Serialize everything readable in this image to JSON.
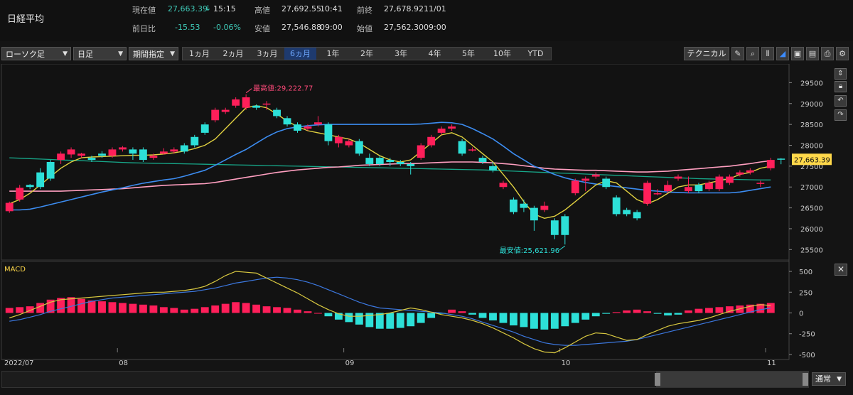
{
  "instrument": "日経平均",
  "quote": {
    "current_label": "現在値",
    "current_value": "27,663.39",
    "current_arrow": "↓",
    "current_time": "15:15",
    "high_label": "高値",
    "high_value": "27,692.55",
    "high_time": "10:41",
    "prev_label": "前終",
    "prev_value": "27,678.92",
    "prev_date": "11/01",
    "change_label": "前日比",
    "change_value": "-15.53",
    "change_pct": "-0.06%",
    "low_label": "安値",
    "low_value": "27,546.88",
    "low_time": "09:00",
    "open_label": "始値",
    "open_value": "27,562.30",
    "open_time": "09:00"
  },
  "toolbar": {
    "chart_type": "ローソク足",
    "interval": "日足",
    "period_select": "期間指定",
    "periods": [
      "1ヵ月",
      "2ヵ月",
      "3ヵ月",
      "6ヵ月",
      "1年",
      "2年",
      "3年",
      "4年",
      "5年",
      "10年",
      "YTD"
    ],
    "active_period": "6ヵ月",
    "technical": "テクニカル",
    "icons": [
      "pencil-icon",
      "zoom-icon",
      "bar-chart-icon",
      "area-chart-icon",
      "save-icon",
      "document-icon",
      "print-icon",
      "settings-icon"
    ]
  },
  "side_icons": [
    "scroll-icon",
    "lock-icon",
    "undo-icon",
    "redo-icon"
  ],
  "colors": {
    "up": "#ff1f5a",
    "down": "#2de0d8",
    "ma_short": "#e0d040",
    "ma_mid": "#3c8cf0",
    "ma_long": "#ff9fc0",
    "ma_vlong": "#17a88a",
    "macd_line": "#d8c840",
    "signal_line": "#3c78e0"
  },
  "chart_data": {
    "type": "candlestick",
    "x_labels": [
      "2022/07",
      "08",
      "09",
      "10",
      "11"
    ],
    "x_label_index": [
      0,
      11,
      33,
      54,
      74
    ],
    "y_ticks": [
      25500,
      26000,
      26500,
      27000,
      27500,
      28000,
      28500,
      29000,
      29500
    ],
    "ylim": [
      25250,
      29950
    ],
    "last_price_label": "27,663.39",
    "annotations": [
      {
        "text": "最高値:29,222.77",
        "index": 23,
        "value": 29222.77
      },
      {
        "text": "最安値:25,621.96",
        "index": 54,
        "value": 25621.96
      }
    ],
    "candles": [
      [
        26420,
        26620,
        26380,
        26650
      ],
      [
        26700,
        26980,
        26650,
        27050
      ],
      [
        27050,
        27000,
        26950,
        27070
      ],
      [
        27350,
        27000,
        26950,
        27450
      ],
      [
        27600,
        27200,
        27150,
        27650
      ],
      [
        27650,
        27800,
        27550,
        27850
      ],
      [
        27780,
        27900,
        27700,
        27950
      ],
      [
        27750,
        27800,
        27700,
        27820
      ],
      [
        27700,
        27650,
        27600,
        27750
      ],
      [
        27800,
        27750,
        27700,
        27860
      ],
      [
        27750,
        27900,
        27700,
        27950
      ],
      [
        27900,
        27950,
        27850,
        27980
      ],
      [
        27900,
        27800,
        27650,
        27950
      ],
      [
        27900,
        27650,
        27600,
        27950
      ],
      [
        27700,
        27750,
        27650,
        27800
      ],
      [
        27800,
        27850,
        27780,
        27930
      ],
      [
        27850,
        27900,
        27800,
        27950
      ],
      [
        28000,
        27850,
        27800,
        28050
      ],
      [
        28200,
        28000,
        27950,
        28250
      ],
      [
        28500,
        28300,
        28250,
        28550
      ],
      [
        28600,
        28850,
        28550,
        28900
      ],
      [
        28800,
        28850,
        28750,
        28900
      ],
      [
        28950,
        29100,
        28900,
        29150
      ],
      [
        28900,
        29150,
        28850,
        29222
      ],
      [
        28950,
        28900,
        28850,
        28980
      ],
      [
        29000,
        29000,
        28850,
        29060
      ],
      [
        28850,
        28700,
        28650,
        28900
      ],
      [
        28650,
        28500,
        28450,
        28700
      ],
      [
        28500,
        28350,
        28300,
        28550
      ],
      [
        28400,
        28450,
        28350,
        28500
      ],
      [
        28500,
        28550,
        28450,
        28700
      ],
      [
        28500,
        28100,
        28000,
        28550
      ],
      [
        28050,
        28200,
        27950,
        28250
      ],
      [
        28000,
        28100,
        27950,
        28150
      ],
      [
        28100,
        27800,
        27750,
        28150
      ],
      [
        27700,
        27550,
        27500,
        27800
      ],
      [
        27700,
        27550,
        27500,
        27750
      ],
      [
        27650,
        27600,
        27500,
        27700
      ],
      [
        27600,
        27550,
        27500,
        27650
      ],
      [
        27550,
        27500,
        27300,
        27600
      ],
      [
        27700,
        28000,
        27650,
        28050
      ],
      [
        28000,
        28200,
        27950,
        28250
      ],
      [
        28300,
        28400,
        28250,
        28450
      ],
      [
        28400,
        28450,
        28350,
        28500
      ],
      [
        28100,
        27800,
        27750,
        28150
      ],
      [
        27900,
        27900,
        27850,
        27950
      ],
      [
        27700,
        27600,
        27550,
        27750
      ],
      [
        27500,
        27400,
        27350,
        27600
      ],
      [
        27000,
        27100,
        26950,
        27150
      ],
      [
        26700,
        26400,
        26350,
        26750
      ],
      [
        26600,
        26500,
        26400,
        26700
      ],
      [
        26500,
        26200,
        25950,
        26550
      ],
      [
        26450,
        26550,
        26400,
        26650
      ],
      [
        26200,
        25850,
        25750,
        26250
      ],
      [
        26300,
        25850,
        25622,
        26350
      ],
      [
        26850,
        27150,
        26800,
        27200
      ],
      [
        27150,
        27200,
        26900,
        27250
      ],
      [
        27250,
        27300,
        27200,
        27350
      ],
      [
        27200,
        27000,
        26950,
        27250
      ],
      [
        26750,
        26350,
        26300,
        26800
      ],
      [
        26450,
        26350,
        26300,
        26500
      ],
      [
        26400,
        26250,
        26200,
        26450
      ],
      [
        26600,
        27100,
        26550,
        27150
      ],
      [
        26850,
        26850,
        26800,
        26950
      ],
      [
        26900,
        27050,
        26850,
        27150
      ],
      [
        27200,
        27250,
        27150,
        27300
      ],
      [
        26900,
        27000,
        26850,
        27250
      ],
      [
        27050,
        26900,
        26850,
        27100
      ],
      [
        26950,
        27100,
        26900,
        27150
      ],
      [
        26950,
        27250,
        26900,
        27300
      ],
      [
        27100,
        27250,
        27050,
        27300
      ],
      [
        27300,
        27350,
        27250,
        27400
      ],
      [
        27350,
        27400,
        27300,
        27450
      ],
      [
        27100,
        27100,
        27000,
        27150
      ],
      [
        27450,
        27650,
        27400,
        27700
      ],
      [
        27680,
        27660,
        27546,
        27692
      ]
    ],
    "ma_short": [
      26600,
      26700,
      26850,
      27050,
      27250,
      27450,
      27600,
      27700,
      27720,
      27730,
      27740,
      27750,
      27760,
      27760,
      27770,
      27790,
      27820,
      27860,
      27920,
      28000,
      28150,
      28400,
      28650,
      28900,
      28950,
      28900,
      28750,
      28580,
      28450,
      28350,
      28300,
      28250,
      28200,
      28150,
      28050,
      27900,
      27750,
      27650,
      27600,
      27650,
      27850,
      28050,
      28250,
      28300,
      28200,
      28000,
      27800,
      27600,
      27300,
      27000,
      26650,
      26350,
      26250,
      26300,
      26450,
      26650,
      26850,
      27050,
      27150,
      27100,
      26900,
      26700,
      26600,
      26700,
      26850,
      27000,
      27050,
      27050,
      27100,
      27150,
      27200,
      27300,
      27350,
      27450,
      27500
    ],
    "ma_mid": [
      26450,
      26450,
      26470,
      26520,
      26580,
      26640,
      26700,
      26760,
      26820,
      26880,
      26930,
      26980,
      27040,
      27090,
      27130,
      27170,
      27200,
      27260,
      27330,
      27400,
      27520,
      27650,
      27780,
      27900,
      28050,
      28200,
      28320,
      28400,
      28440,
      28470,
      28490,
      28500,
      28500,
      28500,
      28500,
      28500,
      28500,
      28500,
      28500,
      28500,
      28510,
      28530,
      28550,
      28540,
      28500,
      28400,
      28280,
      28150,
      27980,
      27800,
      27650,
      27500,
      27400,
      27300,
      27220,
      27160,
      27110,
      27070,
      27040,
      27010,
      26980,
      26950,
      26920,
      26900,
      26880,
      26870,
      26860,
      26860,
      26860,
      26860,
      26860,
      26880,
      26920,
      26960,
      27000
    ],
    "ma_long": [
      26900,
      26900,
      26900,
      26900,
      26900,
      26900,
      26910,
      26920,
      26930,
      26940,
      26950,
      26960,
      26980,
      27000,
      27020,
      27040,
      27050,
      27060,
      27070,
      27080,
      27110,
      27150,
      27190,
      27230,
      27270,
      27310,
      27350,
      27380,
      27410,
      27430,
      27450,
      27470,
      27480,
      27500,
      27520,
      27530,
      27540,
      27550,
      27560,
      27560,
      27570,
      27580,
      27590,
      27600,
      27600,
      27600,
      27590,
      27580,
      27560,
      27540,
      27510,
      27480,
      27450,
      27430,
      27420,
      27410,
      27400,
      27400,
      27390,
      27380,
      27370,
      27360,
      27360,
      27370,
      27380,
      27400,
      27420,
      27440,
      27460,
      27480,
      27500,
      27530,
      27560,
      27600,
      27630
    ],
    "ma_vlong": [
      27700,
      27690,
      27680,
      27670,
      27660,
      27650,
      27640,
      27630,
      27620,
      27610,
      27600,
      27590,
      27580,
      27575,
      27570,
      27565,
      27560,
      27555,
      27550,
      27545,
      27540,
      27535,
      27530,
      27525,
      27520,
      27515,
      27510,
      27505,
      27500,
      27495,
      27490,
      27485,
      27480,
      27475,
      27470,
      27465,
      27460,
      27455,
      27450,
      27445,
      27440,
      27435,
      27430,
      27425,
      27420,
      27415,
      27410,
      27400,
      27390,
      27380,
      27370,
      27360,
      27350,
      27340,
      27330,
      27320,
      27310,
      27300,
      27290,
      27280,
      27270,
      27260,
      27250,
      27240,
      27230,
      27220,
      27210,
      27200,
      27195,
      27190,
      27185,
      27180,
      27175,
      27170,
      27170
    ],
    "macd": {
      "y_ticks": [
        500,
        250,
        0,
        -250,
        -500
      ],
      "ylim": [
        -560,
        620
      ],
      "hist": [
        60,
        70,
        80,
        120,
        160,
        180,
        190,
        170,
        150,
        140,
        130,
        120,
        110,
        100,
        90,
        70,
        60,
        40,
        50,
        70,
        90,
        110,
        130,
        120,
        100,
        80,
        70,
        60,
        40,
        20,
        0,
        -40,
        -80,
        -110,
        -140,
        -170,
        -190,
        -190,
        -180,
        -160,
        -120,
        -60,
        -10,
        40,
        20,
        -20,
        -60,
        -90,
        -120,
        -150,
        -170,
        -190,
        -200,
        -190,
        -160,
        -120,
        -80,
        -40,
        -10,
        10,
        30,
        40,
        20,
        -10,
        -30,
        -20,
        30,
        50,
        60,
        70,
        80,
        90,
        100,
        110,
        120
      ],
      "macd_line": [
        -60,
        -20,
        30,
        80,
        130,
        160,
        170,
        180,
        190,
        200,
        210,
        220,
        230,
        240,
        250,
        250,
        260,
        270,
        290,
        320,
        380,
        450,
        500,
        490,
        480,
        420,
        360,
        300,
        240,
        170,
        100,
        40,
        -10,
        -40,
        -40,
        -30,
        -20,
        0,
        30,
        60,
        40,
        10,
        -20,
        -40,
        -60,
        -90,
        -130,
        -180,
        -240,
        -300,
        -370,
        -430,
        -470,
        -480,
        -420,
        -350,
        -280,
        -240,
        -250,
        -290,
        -330,
        -320,
        -260,
        -210,
        -160,
        -130,
        -110,
        -90,
        -60,
        -20,
        20,
        50,
        80,
        100,
        90
      ],
      "signal_line": [
        -100,
        -80,
        -50,
        -20,
        20,
        50,
        80,
        110,
        140,
        160,
        180,
        190,
        200,
        210,
        220,
        230,
        240,
        250,
        260,
        280,
        300,
        330,
        360,
        380,
        400,
        420,
        430,
        420,
        400,
        370,
        330,
        280,
        230,
        180,
        130,
        90,
        60,
        50,
        40,
        30,
        20,
        10,
        0,
        -20,
        -40,
        -70,
        -110,
        -150,
        -190,
        -230,
        -280,
        -320,
        -360,
        -380,
        -390,
        -390,
        -380,
        -370,
        -360,
        -350,
        -340,
        -320,
        -290,
        -260,
        -230,
        -200,
        -170,
        -140,
        -110,
        -80,
        -50,
        -20,
        10,
        40,
        60
      ]
    },
    "macd_title": "MACD",
    "navigator_mode": "通常"
  }
}
